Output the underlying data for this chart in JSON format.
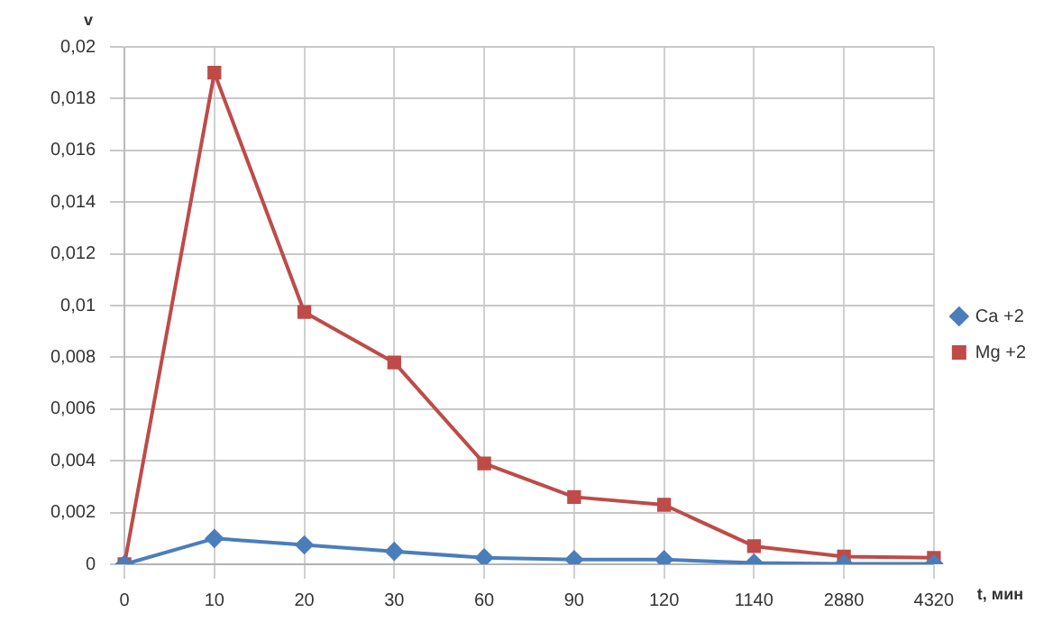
{
  "chart_data": {
    "type": "line",
    "xlabel": "t, мин",
    "ylabel": "v",
    "categories": [
      "0",
      "10",
      "20",
      "30",
      "60",
      "90",
      "120",
      "1140",
      "2880",
      "4320"
    ],
    "series": [
      {
        "name": "Ca +2",
        "color": "#4a7ebb",
        "marker": "diamond",
        "values": [
          0,
          0.001,
          0.00075,
          0.0005,
          0.00025,
          0.00018,
          0.00018,
          5e-05,
          2e-05,
          2e-05
        ]
      },
      {
        "name": "Mg +2",
        "color": "#be4b48",
        "marker": "square",
        "values": [
          0,
          0.019,
          0.00975,
          0.0078,
          0.0039,
          0.0026,
          0.0023,
          0.0007,
          0.0003,
          0.00025
        ]
      }
    ],
    "ylim": [
      0,
      0.02
    ],
    "yticks": [
      0,
      {
        "value": 0.002,
        "label": "0,002"
      },
      {
        "value": 0.004,
        "label": "0,004"
      },
      {
        "value": 0.006,
        "label": "0,006"
      },
      {
        "value": 0.008,
        "label": "0,008"
      },
      {
        "value": 0.01,
        "label": "0,01"
      },
      {
        "value": 0.012,
        "label": "0,012"
      },
      {
        "value": 0.014,
        "label": "0,014"
      },
      {
        "value": 0.016,
        "label": "0,016"
      },
      {
        "value": 0.018,
        "label": "0,018"
      },
      {
        "value": 0.02,
        "label": "0,02"
      }
    ],
    "grid": true,
    "legend": "right"
  }
}
